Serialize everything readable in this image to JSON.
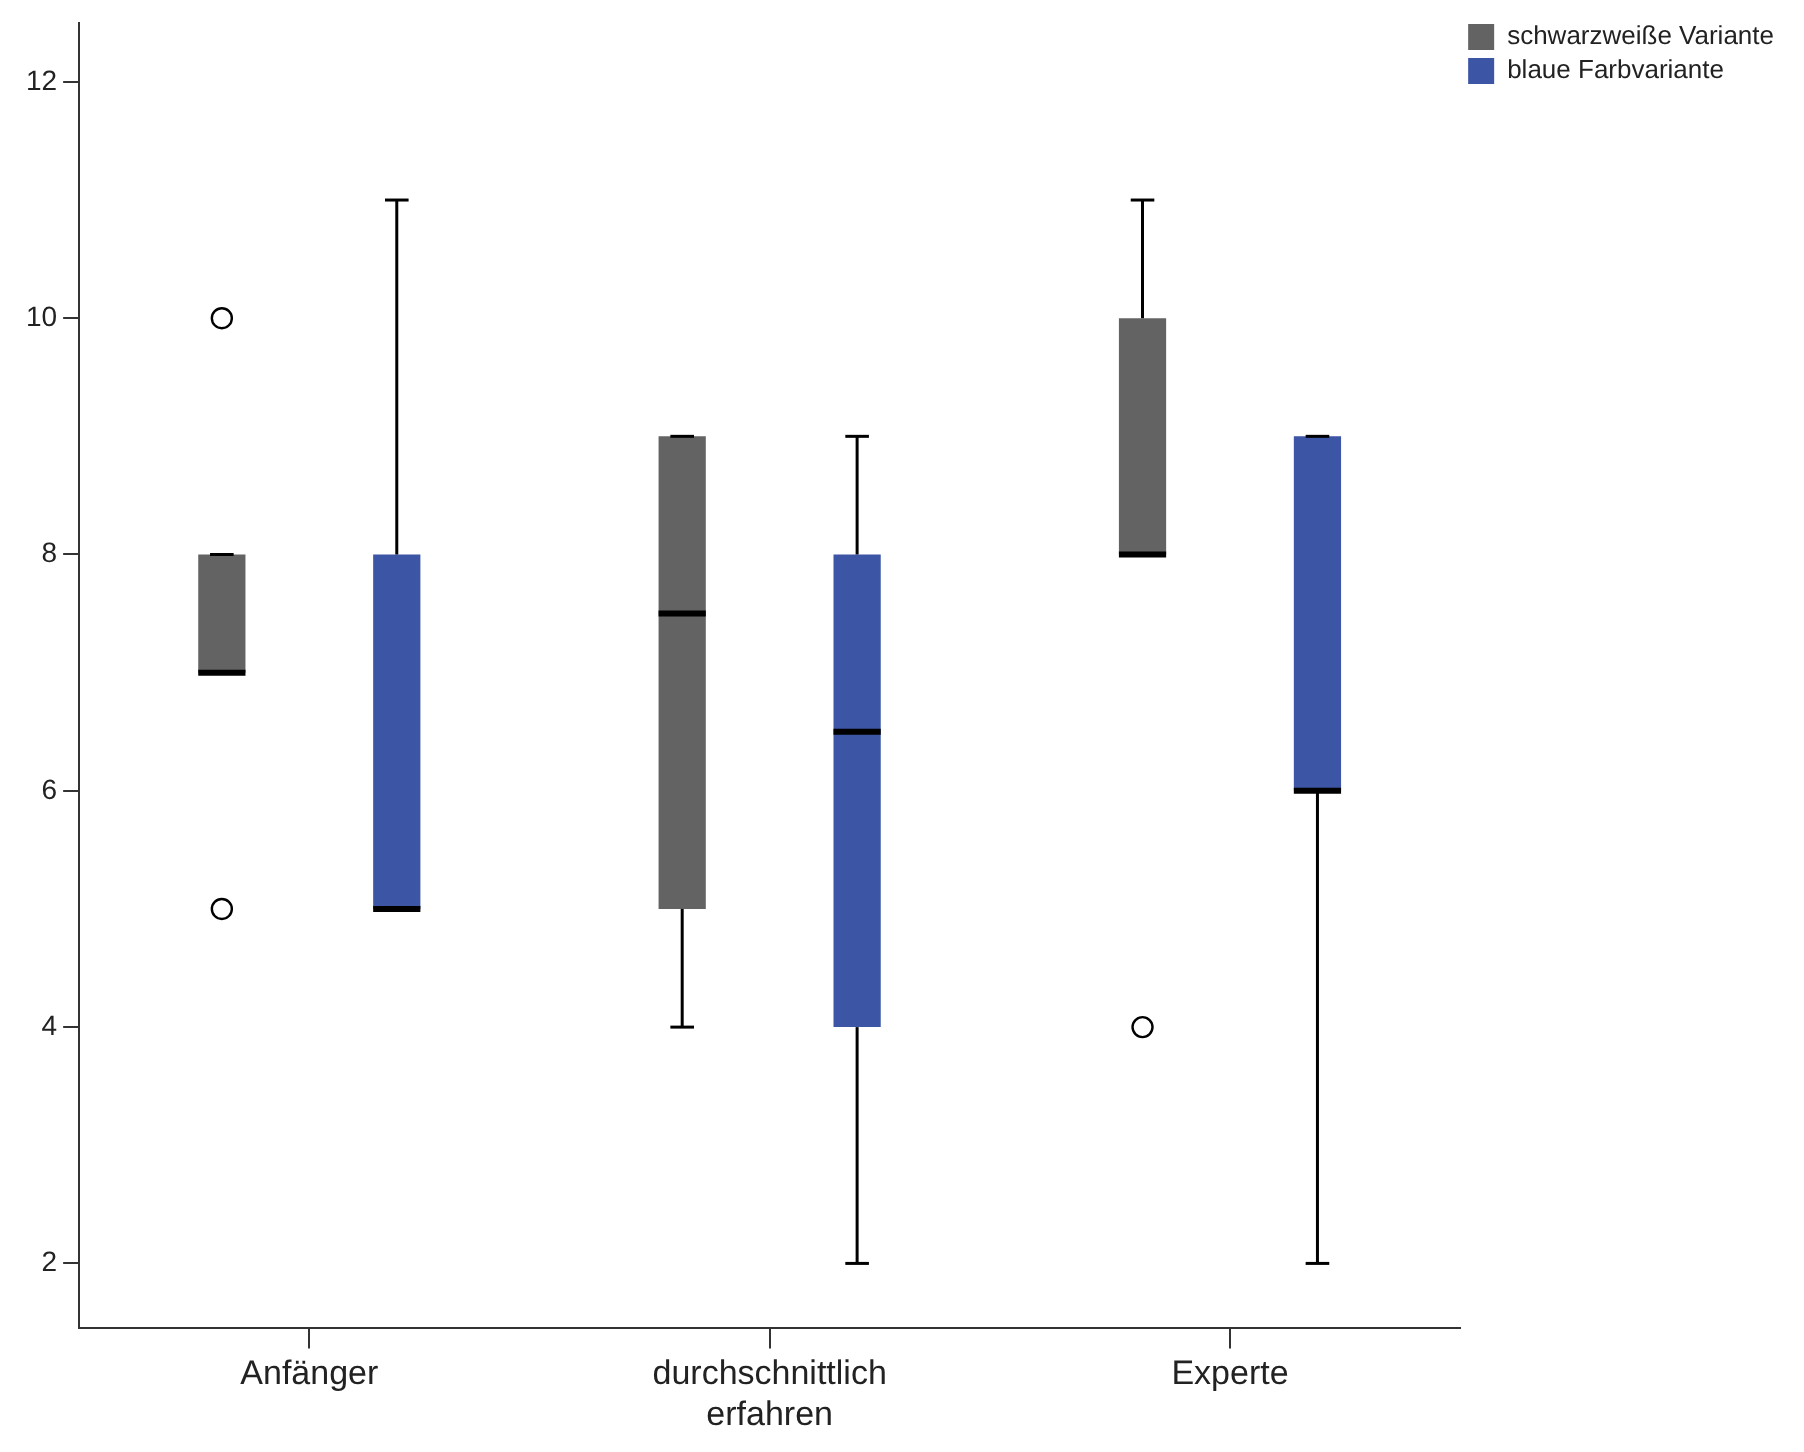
{
  "chart_data": {
    "type": "box",
    "categories": [
      "Anfänger",
      "durchschnittlich erfahren",
      "Experte"
    ],
    "series": [
      {
        "name": "schwarzweiße Variante",
        "color": "#636363",
        "boxes": [
          {
            "low": 7,
            "q1": 7,
            "median": 7,
            "q3": 8,
            "high": 8,
            "outliers": [
              10,
              5
            ]
          },
          {
            "low": 4,
            "q1": 5,
            "median": 7.5,
            "q3": 9,
            "high": 9
          },
          {
            "low": 8,
            "q1": 8,
            "median": 8,
            "q3": 10,
            "high": 11,
            "outliers": [
              4
            ]
          }
        ]
      },
      {
        "name": "blaue Farbvariante",
        "color": "#3c55a5",
        "boxes": [
          {
            "low": 5,
            "q1": 5,
            "median": 5,
            "q3": 8,
            "high": 11
          },
          {
            "low": 2,
            "q1": 4,
            "median": 6.5,
            "q3": 8,
            "high": 9
          },
          {
            "low": 2,
            "q1": 6,
            "median": 6,
            "q3": 9,
            "high": 9
          }
        ]
      }
    ],
    "ylim": [
      1.45,
      12.5
    ],
    "yticks": [
      2,
      4,
      6,
      8,
      10,
      12
    ],
    "grid": false,
    "legend": "top right"
  }
}
